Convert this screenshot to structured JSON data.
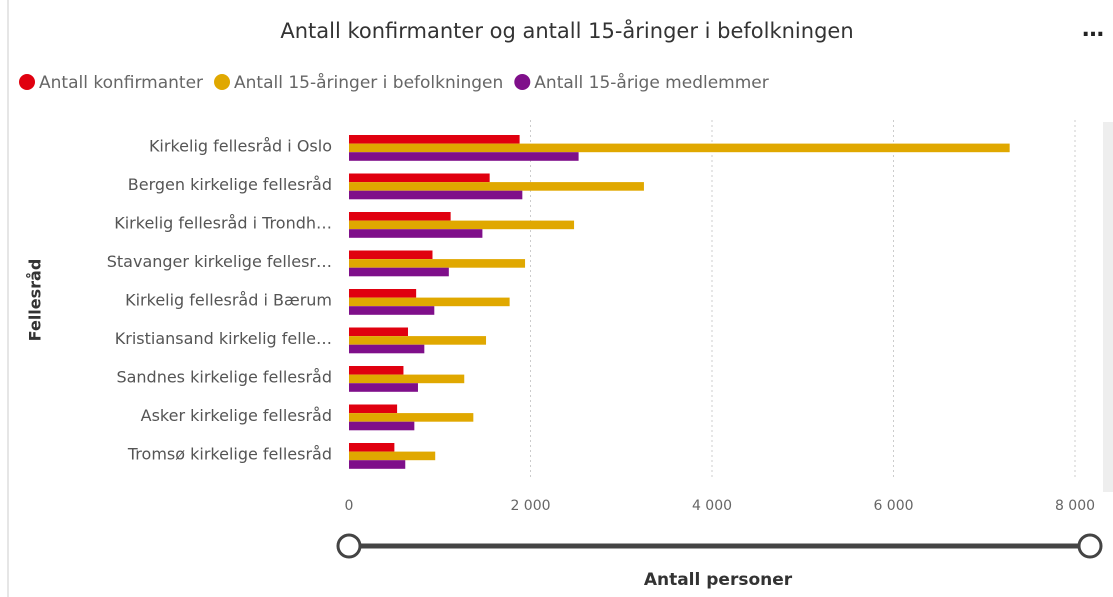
{
  "chart_data": {
    "type": "bar",
    "orientation": "horizontal",
    "title": "Antall konfirmanter og antall 15-åringer i befolkningen",
    "x_label": "Antall personer",
    "y_label": "Fellesråd",
    "categories": [
      "Kirkelig fellesråd i Oslo",
      "Bergen kirkelige fellesråd",
      "Kirkelig fellesråd i Trondh…",
      "Stavanger kirkelige fellesr…",
      "Kirkelig fellesråd i Bærum",
      "Kristiansand kirkelig felle…",
      "Sandnes kirkelige fellesråd",
      "Asker kirkelige fellesråd",
      "Tromsø kirkelige fellesråd"
    ],
    "series": [
      {
        "name": "Antall konfirmanter",
        "color": "#e0000f",
        "values": [
          1880,
          1550,
          1120,
          920,
          740,
          650,
          600,
          530,
          500
        ]
      },
      {
        "name": "Antall 15-åringer i befolkningen",
        "color": "#e0a800",
        "values": [
          7280,
          3250,
          2480,
          1940,
          1770,
          1510,
          1270,
          1370,
          950
        ]
      },
      {
        "name": "Antall 15-årige medlemmer",
        "color": "#7f0f8a",
        "values": [
          2530,
          1910,
          1470,
          1100,
          940,
          830,
          760,
          720,
          620
        ]
      }
    ],
    "xlim": [
      0,
      8000
    ],
    "xticks": [
      0,
      {
        "value": 2000,
        "label": "2 000"
      },
      {
        "value": 4000,
        "label": "4 000"
      },
      {
        "value": 6000,
        "label": "6 000"
      },
      {
        "value": 8000,
        "label": "8 000"
      }
    ],
    "grid": true,
    "legend": "top-left"
  }
}
